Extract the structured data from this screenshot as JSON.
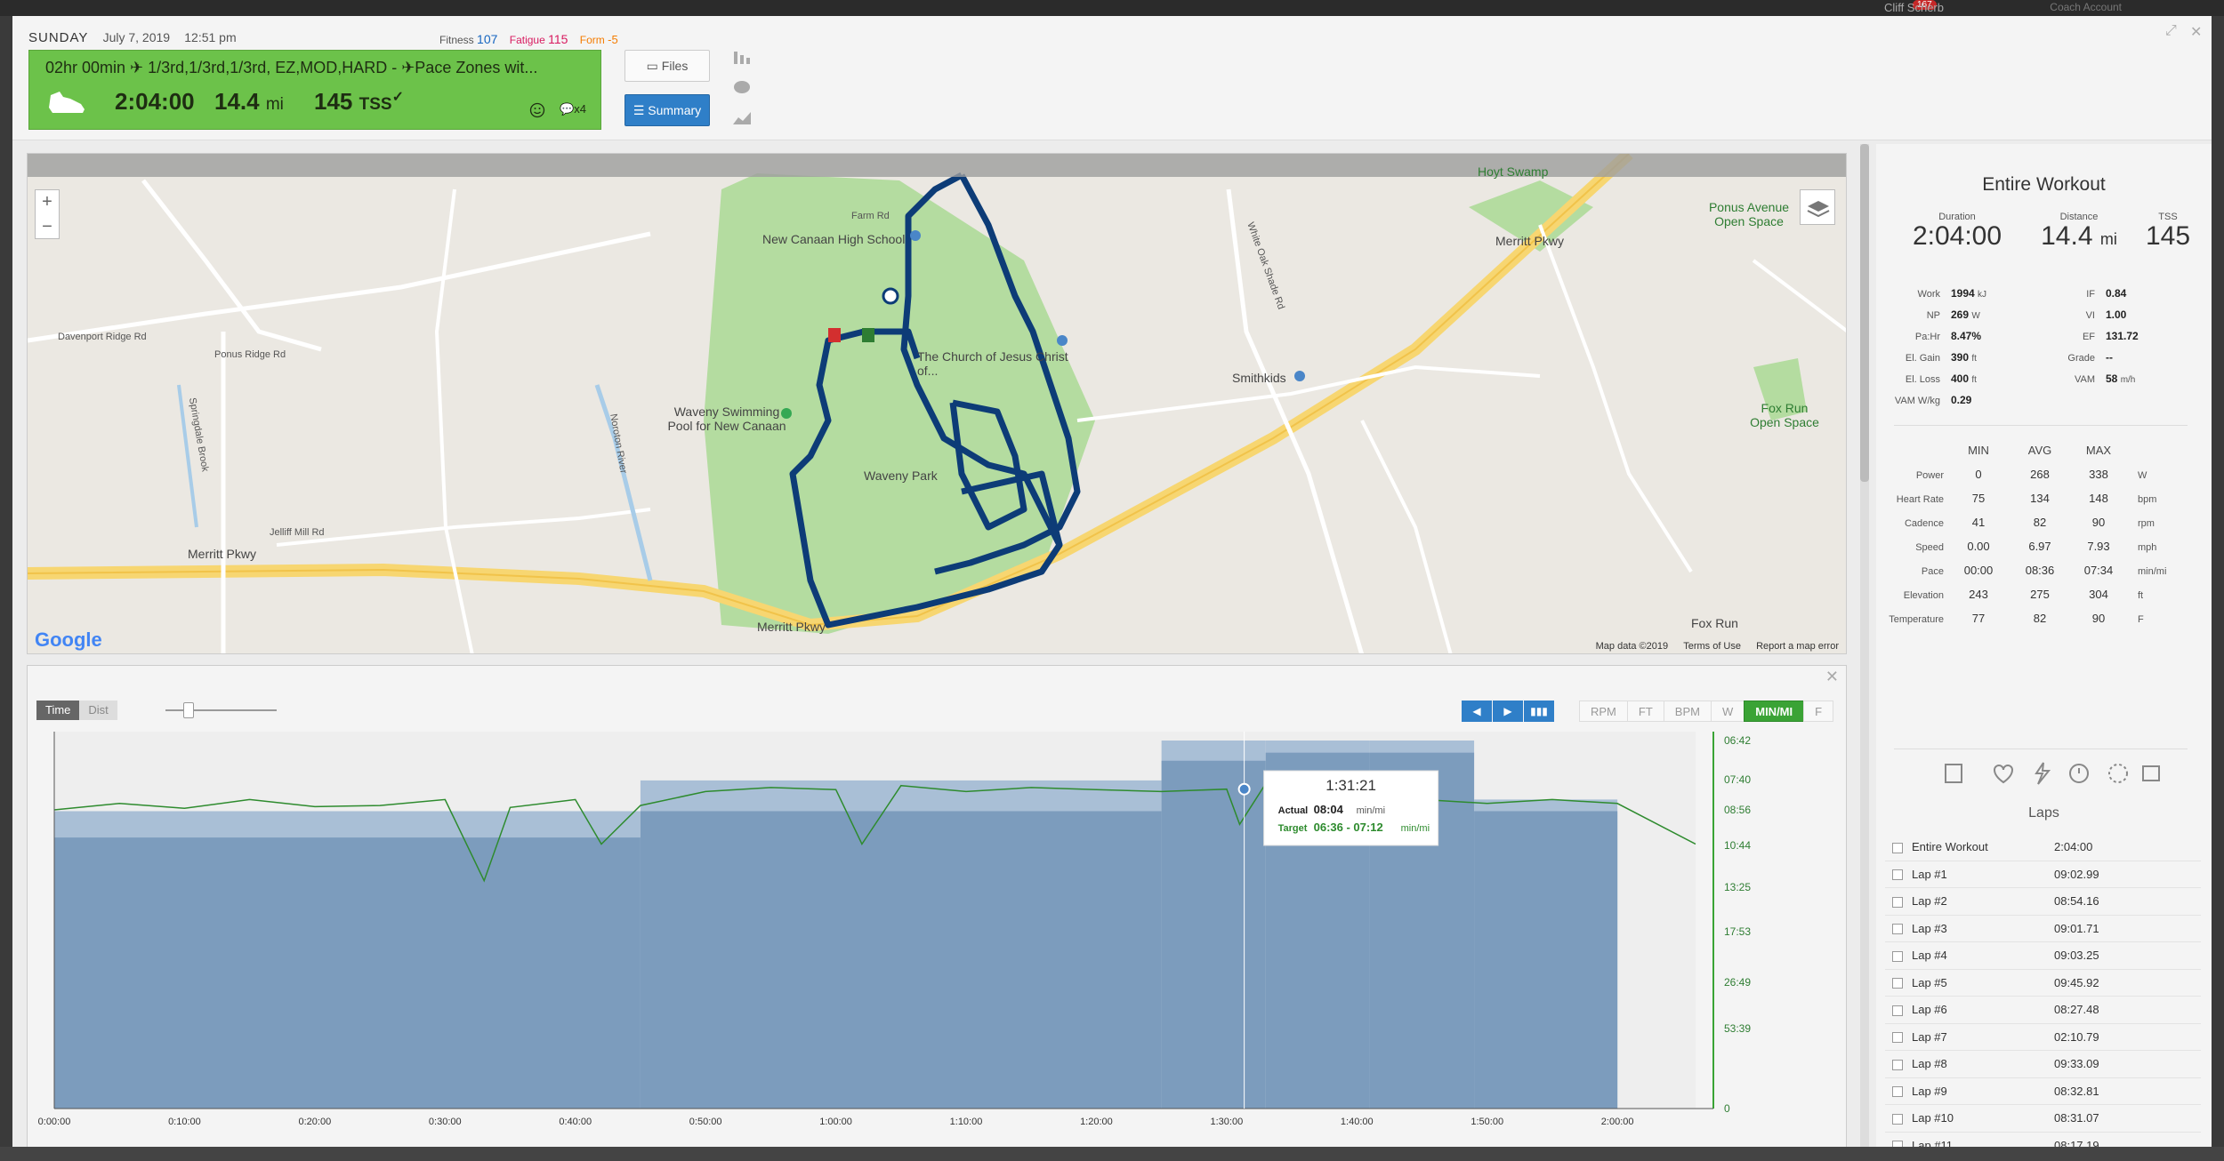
{
  "topbar": {
    "notification_count": "167",
    "user": "Cliff Scherb",
    "coach": "Coach Account"
  },
  "header": {
    "day": "SUNDAY",
    "date": "July 7, 2019",
    "time": "12:51 pm",
    "fitness_label": "Fitness",
    "fitness": "107",
    "fatigue_label": "Fatigue",
    "fatigue": "115",
    "form_label": "Form",
    "form": "-5"
  },
  "workout": {
    "title": "02hr 00min ✈ 1/3rd,1/3rd,1/3rd, EZ,MOD,HARD - ✈Pace Zones wit...",
    "duration": "2:04:00",
    "distance": "14.4",
    "distance_unit": "mi",
    "tss": "145",
    "tss_unit": "TSS",
    "comment_count": "x4",
    "card_color": "#6cc24a"
  },
  "buttons": {
    "files": "Files",
    "summary": "Summary"
  },
  "map": {
    "attribution": "Google",
    "data": "Map data ©2019",
    "terms": "Terms of Use",
    "report": "Report a map error",
    "labels": {
      "high_school": "New Canaan High School",
      "farm_rd": "Farm Rd",
      "davenport": "Davenport Ridge Rd",
      "ponus": "Ponus Ridge Rd",
      "waveny_swim": "Waveny Swimming Pool for New Canaan",
      "waveny_park": "Waveny Park",
      "merritt1": "Merritt Pkwy",
      "merritt2": "Merritt Pkwy",
      "merritt3": "Merritt Pkwy",
      "jelliff": "Jelliff Mill Rd",
      "hoyt": "Hoyt Swamp",
      "ponus_ave": "Ponus Avenue Open Space",
      "fox_run": "Fox Run Open Space",
      "smithkids": "Smithkids",
      "church": "The Church of Jesus Christ of...",
      "white_oak": "White Oak Shade Rd",
      "springdale": "Springdale Brook",
      "noroton": "Noroton River",
      "fox_run_park": "Fox Run"
    }
  },
  "chart_controls": {
    "time": "Time",
    "dist": "Dist",
    "units": [
      "RPM",
      "FT",
      "BPM",
      "W",
      "MIN/MI",
      "F"
    ],
    "active_unit": "MIN/MI"
  },
  "chart_data": {
    "type": "area",
    "xlabel": "",
    "ylabel": "",
    "x_ticks": [
      "0:00:00",
      "0:10:00",
      "0:20:00",
      "0:30:00",
      "0:40:00",
      "0:50:00",
      "1:00:00",
      "1:10:00",
      "1:20:00",
      "1:30:00",
      "1:40:00",
      "1:50:00",
      "2:00:00"
    ],
    "x_range_min": [
      0,
      126
    ],
    "y_ticks": [
      "06:42",
      "07:40",
      "08:56",
      "10:44",
      "13:25",
      "17:53",
      "26:49",
      "53:39",
      "0"
    ],
    "target_zones": [
      {
        "start_min": 0,
        "end_min": 45,
        "low": "09:00",
        "high": "10:20"
      },
      {
        "start_min": 45,
        "end_min": 85,
        "low": "07:42",
        "high": "09:00"
      },
      {
        "start_min": 85,
        "end_min": 93,
        "low": "06:36",
        "high": "07:12"
      },
      {
        "start_min": 93,
        "end_min": 101,
        "low": "06:30",
        "high": "07:00"
      },
      {
        "start_min": 101,
        "end_min": 109,
        "low": "06:20",
        "high": "07:00"
      },
      {
        "start_min": 109,
        "end_min": 120,
        "low": "08:30",
        "high": "09:00"
      }
    ],
    "pace_series": {
      "name": "Pace",
      "x_min": [
        0,
        5,
        10,
        15,
        20,
        25,
        30,
        33,
        35,
        40,
        42,
        45,
        50,
        55,
        60,
        62,
        65,
        70,
        75,
        80,
        85,
        90,
        91,
        93,
        95,
        100,
        105,
        110,
        115,
        120,
        126
      ],
      "y_pace": [
        "08:56",
        "08:40",
        "08:52",
        "08:30",
        "08:48",
        "08:45",
        "08:30",
        "13:00",
        "08:50",
        "08:30",
        "10:40",
        "08:45",
        "08:10",
        "08:00",
        "08:05",
        "10:40",
        "07:55",
        "08:10",
        "08:00",
        "08:05",
        "08:10",
        "08:04",
        "09:40",
        "07:50",
        "08:10",
        "07:40",
        "08:30",
        "08:40",
        "08:30",
        "08:40",
        "10:40"
      ]
    },
    "tooltip": {
      "time": "1:31:21",
      "actual_label": "Actual",
      "actual": "08:04",
      "actual_unit": "min/mi",
      "target_label": "Target",
      "target": "06:36 - 07:12",
      "target_unit": "min/mi"
    }
  },
  "summary": {
    "title": "Entire Workout",
    "duration_label": "Duration",
    "duration": "2:04:00",
    "distance_label": "Distance",
    "distance": "14.4",
    "distance_unit": "mi",
    "tss_label": "TSS",
    "tss": "145",
    "left_stats": [
      {
        "k": "Work",
        "v": "1994",
        "u": "kJ"
      },
      {
        "k": "NP",
        "v": "269",
        "u": "W"
      },
      {
        "k": "Pa:Hr",
        "v": "8.47%",
        "u": ""
      },
      {
        "k": "El. Gain",
        "v": "390",
        "u": "ft"
      },
      {
        "k": "El. Loss",
        "v": "400",
        "u": "ft"
      },
      {
        "k": "VAM W/kg",
        "v": "0.29",
        "u": ""
      }
    ],
    "right_stats": [
      {
        "k": "IF",
        "v": "0.84",
        "u": ""
      },
      {
        "k": "VI",
        "v": "1.00",
        "u": ""
      },
      {
        "k": "EF",
        "v": "131.72",
        "u": ""
      },
      {
        "k": "Grade",
        "v": "--",
        "u": ""
      },
      {
        "k": "VAM",
        "v": "58",
        "u": "m/h"
      }
    ],
    "minmax_headers": [
      "MIN",
      "AVG",
      "MAX"
    ],
    "minmax_rows": [
      {
        "k": "Power",
        "min": "0",
        "avg": "268",
        "max": "338",
        "u": "W"
      },
      {
        "k": "Heart Rate",
        "min": "75",
        "avg": "134",
        "max": "148",
        "u": "bpm"
      },
      {
        "k": "Cadence",
        "min": "41",
        "avg": "82",
        "max": "90",
        "u": "rpm"
      },
      {
        "k": "Speed",
        "min": "0.00",
        "avg": "6.97",
        "max": "7.93",
        "u": "mph"
      },
      {
        "k": "Pace",
        "min": "00:00",
        "avg": "08:36",
        "max": "07:34",
        "u": "min/mi"
      },
      {
        "k": "Elevation",
        "min": "243",
        "avg": "275",
        "max": "304",
        "u": "ft"
      },
      {
        "k": "Temperature",
        "min": "77",
        "avg": "82",
        "max": "90",
        "u": "F"
      }
    ]
  },
  "laps": {
    "title": "Laps",
    "items": [
      {
        "name": "Entire Workout",
        "time": "2:04:00"
      },
      {
        "name": "Lap #1",
        "time": "09:02.99"
      },
      {
        "name": "Lap #2",
        "time": "08:54.16"
      },
      {
        "name": "Lap #3",
        "time": "09:01.71"
      },
      {
        "name": "Lap #4",
        "time": "09:03.25"
      },
      {
        "name": "Lap #5",
        "time": "09:45.92"
      },
      {
        "name": "Lap #6",
        "time": "08:27.48"
      },
      {
        "name": "Lap #7",
        "time": "02:10.79"
      },
      {
        "name": "Lap #8",
        "time": "09:33.09"
      },
      {
        "name": "Lap #9",
        "time": "08:32.81"
      },
      {
        "name": "Lap #10",
        "time": "08:31.07"
      },
      {
        "name": "Lap #11",
        "time": "08:17.19"
      }
    ]
  }
}
